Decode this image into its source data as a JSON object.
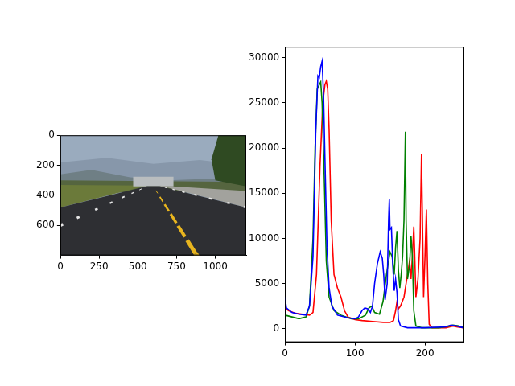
{
  "chart_data": [
    {
      "type": "image",
      "xlim": [
        -0.5,
        1199.5
      ],
      "xticks": [
        0,
        250,
        500,
        750,
        1000
      ],
      "ylim": [
        799.5,
        -0.5
      ],
      "yticks": [
        0,
        200,
        400,
        600
      ],
      "grid": false
    },
    {
      "type": "line",
      "xlim": [
        0,
        255
      ],
      "xticks": [
        0,
        100,
        200
      ],
      "ylim": [
        -1500,
        31200
      ],
      "yticks": [
        0,
        5000,
        10000,
        15000,
        20000,
        25000,
        30000
      ],
      "grid": false,
      "series": [
        {
          "color": "#0000ff",
          "x": [
            0,
            2,
            10,
            20,
            30,
            35,
            40,
            44,
            47,
            49,
            51,
            53,
            55,
            57,
            60,
            63,
            67,
            75,
            90,
            100,
            105,
            110,
            114,
            118,
            122,
            125,
            128,
            132,
            136,
            139,
            141,
            143,
            146,
            148,
            149,
            150,
            152,
            154,
            156,
            158,
            160,
            162,
            165,
            175,
            200,
            230,
            237,
            245,
            255
          ],
          "values": [
            3500,
            2300,
            1800,
            1600,
            1500,
            2500,
            8000,
            22000,
            28000,
            27800,
            29000,
            29600,
            26000,
            19000,
            9000,
            4500,
            2500,
            1500,
            1200,
            1100,
            1300,
            2000,
            2300,
            2200,
            1800,
            2500,
            5000,
            7200,
            8500,
            7800,
            6000,
            3200,
            5000,
            12000,
            14300,
            11000,
            11200,
            7000,
            4200,
            5500,
            4000,
            1000,
            300,
            100,
            100,
            200,
            400,
            300,
            100
          ]
        },
        {
          "color": "#008000",
          "x": [
            0,
            10,
            20,
            30,
            35,
            40,
            43,
            46,
            49,
            51,
            53,
            56,
            59,
            63,
            70,
            80,
            95,
            105,
            115,
            120,
            124,
            128,
            135,
            140,
            145,
            150,
            153,
            156,
            158,
            160,
            162,
            164,
            166,
            168,
            170,
            172,
            173,
            175,
            178,
            180,
            182,
            184,
            187,
            195,
            220,
            235,
            240,
            248,
            255
          ],
          "values": [
            1500,
            1300,
            1100,
            1300,
            2500,
            10000,
            20000,
            26500,
            27000,
            27300,
            25000,
            17000,
            7500,
            3500,
            2000,
            1500,
            1100,
            1100,
            1500,
            2300,
            2500,
            1800,
            1600,
            3000,
            6000,
            8500,
            8000,
            6000,
            9000,
            10800,
            6500,
            4500,
            6000,
            8000,
            12000,
            21800,
            12000,
            5500,
            7000,
            10300,
            8000,
            2000,
            300,
            100,
            100,
            300,
            400,
            300,
            100
          ]
        },
        {
          "color": "#ff0000",
          "x": [
            0,
            5,
            15,
            25,
            35,
            40,
            45,
            50,
            54,
            57,
            59,
            61,
            63,
            66,
            70,
            75,
            80,
            85,
            90,
            100,
            110,
            125,
            140,
            150,
            155,
            158,
            160,
            162,
            165,
            170,
            175,
            178,
            180,
            182,
            184,
            185,
            187,
            190,
            193,
            195,
            196,
            198,
            200,
            202,
            204,
            206,
            210,
            230,
            240,
            245,
            255
          ],
          "values": [
            2300,
            2000,
            1700,
            1600,
            1500,
            1800,
            6000,
            18000,
            25000,
            27000,
            27400,
            26500,
            22000,
            12000,
            6000,
            4500,
            3500,
            2000,
            1300,
            1000,
            900,
            800,
            700,
            700,
            900,
            2000,
            3000,
            2200,
            2500,
            3500,
            6000,
            7500,
            5500,
            8000,
            11300,
            9000,
            3500,
            5500,
            10000,
            19300,
            14000,
            3500,
            8000,
            13200,
            5000,
            500,
            100,
            100,
            300,
            200,
            100
          ]
        }
      ]
    }
  ]
}
